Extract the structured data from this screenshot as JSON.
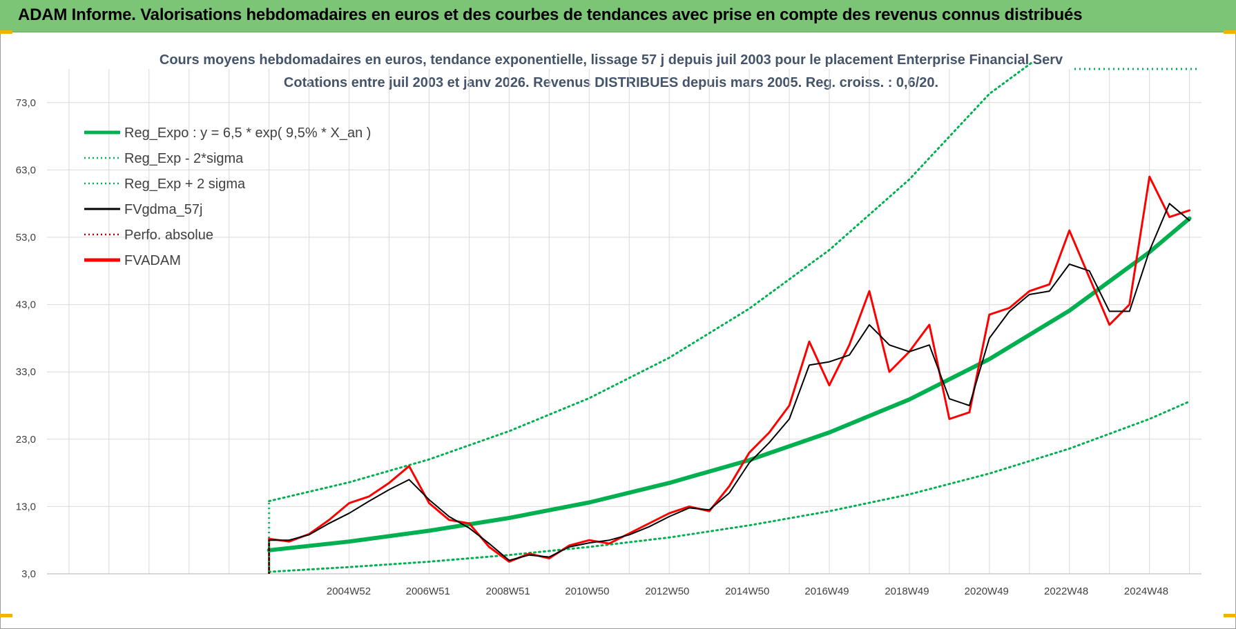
{
  "banner": {
    "title": "ADAM Informe. Valorisations hebdomadaires en euros et des courbes de tendances avec prise en compte des revenus connus distribués",
    "color": "#7cc576"
  },
  "chart_data": {
    "type": "line",
    "title": "Cours moyens hebdomadaires en euros, tendance exponentielle, lissage 57 j depuis juil 2003 pour le placement Enterprise Financial Serv",
    "subtitle": "Cotations entre juil 2003 et janv 2026. Revenus DISTRIBUES depuis mars 2005. Reg. croiss. : 0,6/20.",
    "xlabel": "",
    "ylabel": "",
    "ylim": [
      3,
      78
    ],
    "xlim": [
      1997.45,
      2026.3
    ],
    "y_ticks": [
      "73,0",
      "63,0",
      "53,0",
      "43,0",
      "33,0",
      "23,0",
      "13,0",
      "3,0"
    ],
    "y_tick_values": [
      73,
      63,
      53,
      43,
      33,
      23,
      13,
      3
    ],
    "x_ticks": [
      "2004W52",
      "2006W51",
      "2008W51",
      "2010W50",
      "2012W50",
      "2014W50",
      "2016W49",
      "2018W49",
      "2020W49",
      "2022W48",
      "2024W48"
    ],
    "x_tick_values": [
      2004.99,
      2006.97,
      2008.97,
      2010.95,
      2012.95,
      2014.95,
      2016.94,
      2018.94,
      2020.93,
      2022.92,
      2024.92
    ],
    "grid": true,
    "legend_position": "top-left",
    "legend": [
      {
        "label": "Reg_Expo : y = 6,5 * exp( 9,5% *  X_an )",
        "color": "#00b050",
        "style": "thick"
      },
      {
        "label": "Reg_Exp - 2*sigma",
        "color": "#00b050",
        "style": "dotted"
      },
      {
        "label": "Reg_Exp + 2 sigma",
        "color": "#00b050",
        "style": "dotted"
      },
      {
        "label": "FVgdma_57j",
        "color": "#000000",
        "style": "solid"
      },
      {
        "label": "Perfo. absolue",
        "color": "#c00000",
        "style": "dotted"
      },
      {
        "label": "FVADAM",
        "color": "#ff0000",
        "style": "thick"
      }
    ],
    "series": [
      {
        "name": "Reg_Expo : y = 6,5 * exp( 9,5% *  X_an )",
        "color": "#00b050",
        "x": [
          2003.0,
          2005.0,
          2007.0,
          2009.0,
          2011.0,
          2013.0,
          2015.0,
          2017.0,
          2019.0,
          2021.0,
          2023.0,
          2025.0,
          2026.0
        ],
        "values": [
          6.5,
          7.8,
          9.4,
          11.3,
          13.6,
          16.5,
          19.9,
          24.0,
          28.9,
          34.9,
          42.1,
          50.8,
          55.8
        ]
      },
      {
        "name": "Reg_Exp - 2*sigma",
        "color": "#00b050",
        "x": [
          2003.0,
          2005.0,
          2007.0,
          2009.0,
          2011.0,
          2013.0,
          2015.0,
          2017.0,
          2019.0,
          2021.0,
          2023.0,
          2025.0,
          2026.0
        ],
        "values": [
          3.3,
          4.0,
          4.8,
          5.8,
          7.0,
          8.4,
          10.2,
          12.3,
          14.8,
          17.9,
          21.6,
          26.0,
          28.6
        ]
      },
      {
        "name": "Reg_Exp + 2 sigma",
        "color": "#00b050",
        "x": [
          2003.0,
          2005.0,
          2007.0,
          2009.0,
          2011.0,
          2013.0,
          2015.0,
          2017.0,
          2019.0,
          2021.0,
          2022.3
        ],
        "values": [
          13.8,
          16.6,
          20.0,
          24.2,
          29.1,
          35.1,
          42.4,
          51.1,
          61.6,
          74.3,
          80.0
        ]
      },
      {
        "name": "FVgdma_57j",
        "color": "#000000",
        "x": [
          2003.0,
          2003.5,
          2004.0,
          2004.5,
          2005.0,
          2005.5,
          2006.0,
          2006.5,
          2007.0,
          2007.5,
          2008.0,
          2008.5,
          2009.0,
          2009.5,
          2010.0,
          2010.5,
          2011.0,
          2011.5,
          2012.0,
          2012.5,
          2013.0,
          2013.5,
          2014.0,
          2014.5,
          2015.0,
          2015.5,
          2016.0,
          2016.5,
          2017.0,
          2017.5,
          2018.0,
          2018.5,
          2019.0,
          2019.5,
          2020.0,
          2020.5,
          2021.0,
          2021.5,
          2022.0,
          2022.5,
          2023.0,
          2023.5,
          2024.0,
          2024.5,
          2025.0,
          2025.5,
          2026.0
        ],
        "values": [
          8.0,
          8.0,
          8.8,
          10.5,
          12.0,
          13.8,
          15.5,
          17.0,
          14.0,
          11.5,
          9.8,
          7.5,
          5.0,
          5.8,
          5.5,
          7.0,
          7.6,
          8.0,
          8.8,
          10.0,
          11.5,
          12.8,
          12.5,
          15.0,
          19.5,
          22.5,
          26.0,
          34.0,
          34.5,
          35.5,
          40.0,
          37.0,
          36.0,
          37.0,
          29.0,
          28.0,
          38.0,
          42.0,
          44.5,
          45.0,
          49.0,
          48.0,
          42.0,
          42.0,
          51.0,
          58.0,
          55.5
        ]
      },
      {
        "name": "FVADAM",
        "color": "#ff0000",
        "x": [
          2003.0,
          2003.5,
          2004.0,
          2004.5,
          2005.0,
          2005.5,
          2006.0,
          2006.5,
          2007.0,
          2007.5,
          2008.0,
          2008.5,
          2009.0,
          2009.5,
          2010.0,
          2010.5,
          2011.0,
          2011.5,
          2012.0,
          2012.5,
          2013.0,
          2013.5,
          2014.0,
          2014.5,
          2015.0,
          2015.5,
          2016.0,
          2016.5,
          2017.0,
          2017.5,
          2018.0,
          2018.5,
          2019.0,
          2019.5,
          2020.0,
          2020.5,
          2021.0,
          2021.5,
          2022.0,
          2022.5,
          2023.0,
          2023.5,
          2024.0,
          2024.5,
          2025.0,
          2025.5,
          2026.0
        ],
        "values": [
          8.2,
          7.8,
          8.9,
          11.0,
          13.5,
          14.5,
          16.5,
          19.0,
          13.5,
          11.0,
          10.5,
          7.0,
          4.8,
          6.0,
          5.3,
          7.2,
          8.0,
          7.5,
          9.0,
          10.5,
          12.0,
          13.0,
          12.3,
          16.0,
          21.0,
          24.0,
          28.0,
          37.5,
          31.0,
          37.0,
          45.0,
          33.0,
          36.0,
          40.0,
          26.0,
          27.0,
          41.5,
          42.5,
          45.0,
          46.0,
          54.0,
          47.0,
          40.0,
          43.0,
          62.0,
          56.0,
          57.0
        ]
      }
    ]
  }
}
